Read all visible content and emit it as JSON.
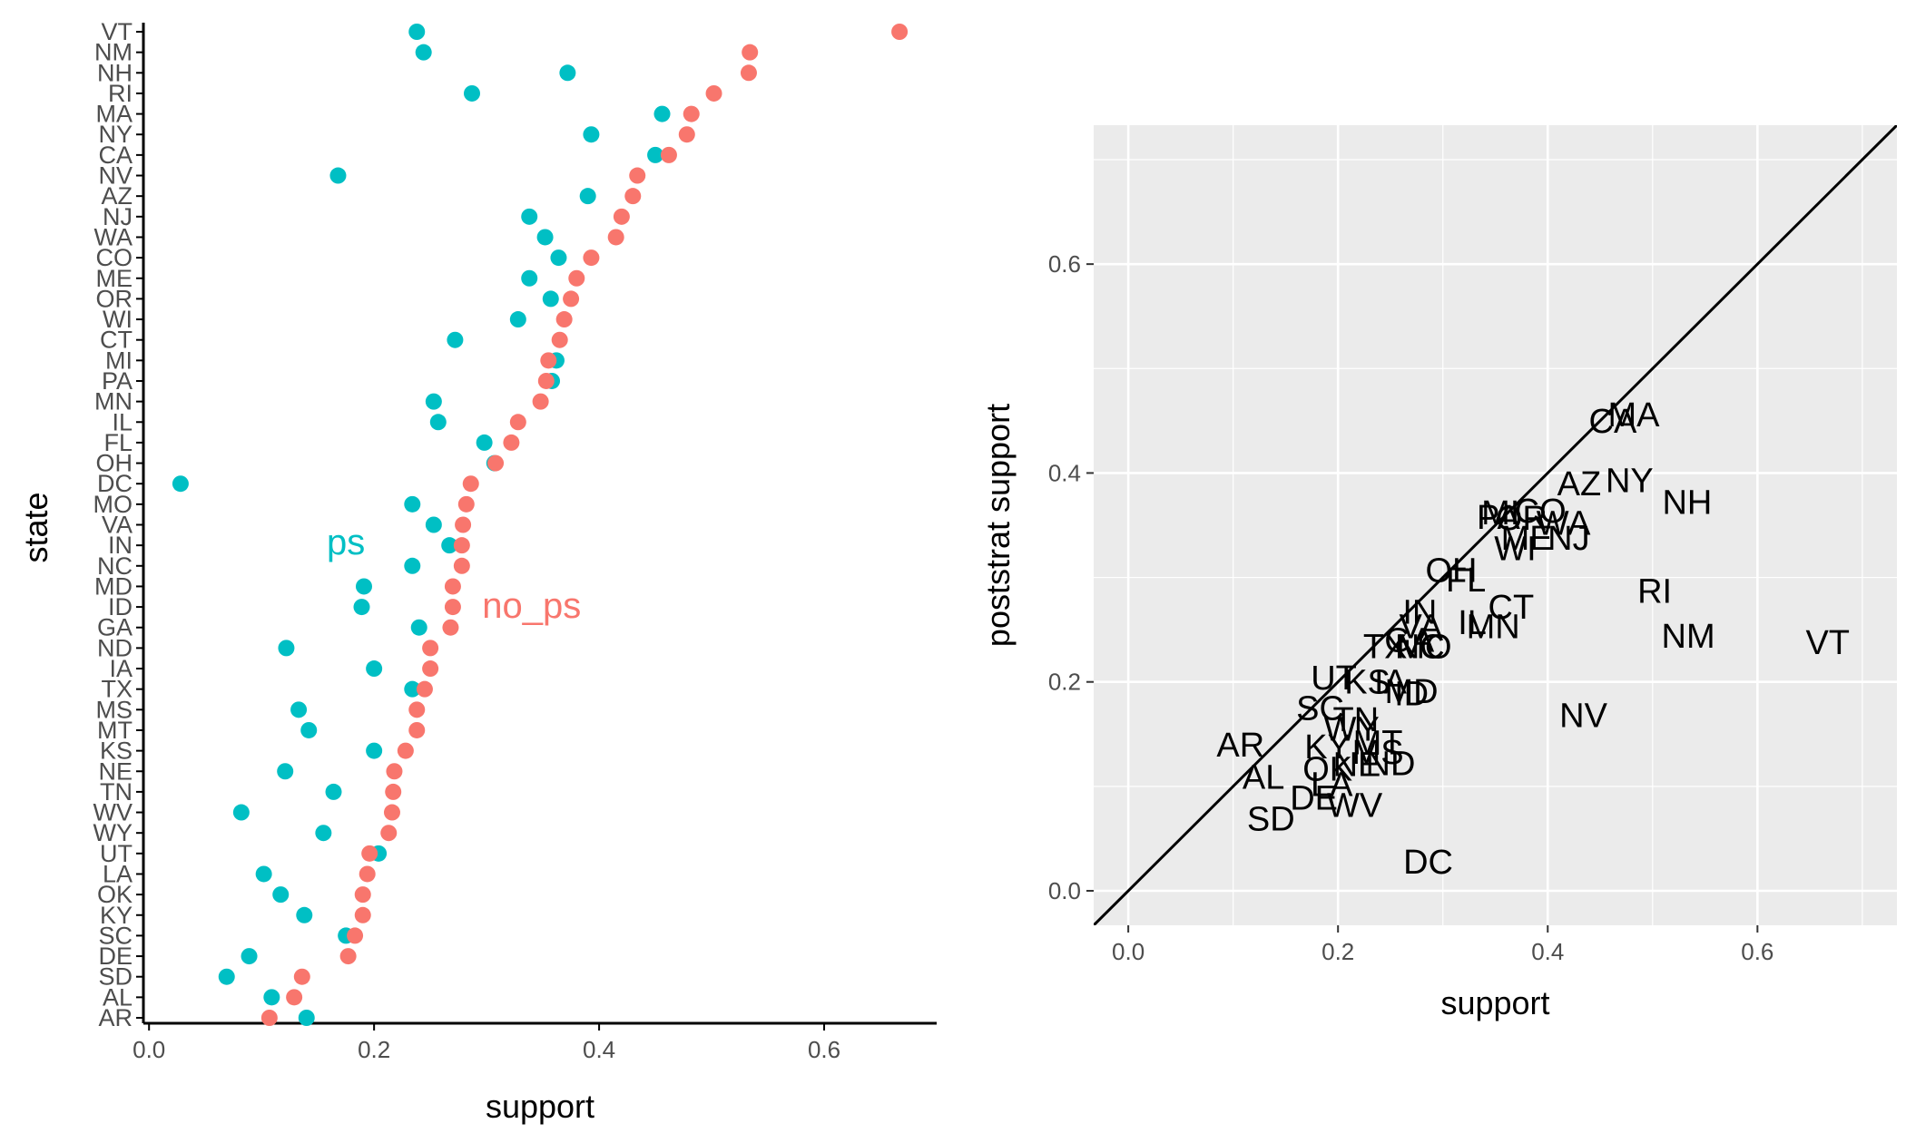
{
  "colors": {
    "ps": "#00BFC4",
    "no_ps": "#F8766D",
    "panel_bg": "#EBEBEB",
    "grid": "#FFFFFF",
    "axis": "#000000",
    "tick_text": "#4D4D4D"
  },
  "chart_data": [
    {
      "type": "scatter",
      "xlabel": "support",
      "ylabel": "state",
      "xlim": [
        -0.005,
        0.7
      ],
      "x_ticks": [
        0.0,
        0.2,
        0.4,
        0.6
      ],
      "x_tick_labels": [
        "0.0",
        "0.2",
        "0.4",
        "0.6"
      ],
      "grid": false,
      "states": [
        "VT",
        "NM",
        "NH",
        "RI",
        "MA",
        "NY",
        "CA",
        "NV",
        "AZ",
        "NJ",
        "WA",
        "CO",
        "ME",
        "OR",
        "WI",
        "CT",
        "MI",
        "PA",
        "MN",
        "IL",
        "FL",
        "OH",
        "DC",
        "MO",
        "VA",
        "IN",
        "NC",
        "MD",
        "ID",
        "GA",
        "ND",
        "IA",
        "TX",
        "MS",
        "MT",
        "KS",
        "NE",
        "TN",
        "WV",
        "WY",
        "UT",
        "LA",
        "OK",
        "KY",
        "SC",
        "DE",
        "SD",
        "AL",
        "AR"
      ],
      "series": [
        {
          "name": "ps",
          "label_position": [
            0.175,
            0.33
          ],
          "values": [
            0.238,
            0.244,
            0.372,
            0.287,
            0.456,
            0.393,
            0.45,
            0.168,
            0.39,
            0.338,
            0.352,
            0.364,
            0.338,
            0.357,
            0.328,
            0.272,
            0.362,
            0.358,
            0.253,
            0.257,
            0.298,
            0.307,
            0.028,
            0.234,
            0.253,
            0.267,
            0.234,
            0.191,
            0.189,
            0.24,
            0.122,
            0.2,
            0.234,
            0.133,
            0.142,
            0.2,
            0.121,
            0.164,
            0.082,
            0.155,
            0.204,
            0.102,
            0.117,
            0.138,
            0.175,
            0.089,
            0.069,
            0.109,
            0.14
          ]
        },
        {
          "name": "no_ps",
          "label_position": [
            0.34,
            0.26
          ],
          "values": [
            0.667,
            0.534,
            0.533,
            0.502,
            0.482,
            0.478,
            0.462,
            0.434,
            0.43,
            0.42,
            0.415,
            0.393,
            0.38,
            0.375,
            0.369,
            0.365,
            0.355,
            0.353,
            0.348,
            0.328,
            0.322,
            0.308,
            0.286,
            0.282,
            0.279,
            0.278,
            0.278,
            0.27,
            0.27,
            0.268,
            0.25,
            0.25,
            0.245,
            0.238,
            0.238,
            0.228,
            0.218,
            0.217,
            0.216,
            0.213,
            0.196,
            0.194,
            0.19,
            0.19,
            0.183,
            0.177,
            0.136,
            0.129,
            0.107
          ]
        }
      ]
    },
    {
      "type": "scatter",
      "xlabel": "support",
      "ylabel": "poststrat support",
      "xlim": [
        -0.033,
        0.733
      ],
      "ylim": [
        -0.033,
        0.733
      ],
      "x_ticks": [
        0.0,
        0.2,
        0.4,
        0.6
      ],
      "x_tick_labels": [
        "0.0",
        "0.2",
        "0.4",
        "0.6"
      ],
      "y_ticks": [
        0.0,
        0.2,
        0.4,
        0.6
      ],
      "y_tick_labels": [
        "0.0",
        "0.2",
        "0.4",
        "0.6"
      ],
      "grid": true,
      "reference_line": "y = x",
      "points": [
        {
          "label": "VT",
          "x": 0.667,
          "y": 0.238
        },
        {
          "label": "NM",
          "x": 0.534,
          "y": 0.244
        },
        {
          "label": "NH",
          "x": 0.533,
          "y": 0.372
        },
        {
          "label": "RI",
          "x": 0.502,
          "y": 0.287
        },
        {
          "label": "MA",
          "x": 0.482,
          "y": 0.456
        },
        {
          "label": "NY",
          "x": 0.478,
          "y": 0.393
        },
        {
          "label": "CA",
          "x": 0.462,
          "y": 0.45
        },
        {
          "label": "NV",
          "x": 0.434,
          "y": 0.168
        },
        {
          "label": "AZ",
          "x": 0.43,
          "y": 0.39
        },
        {
          "label": "NJ",
          "x": 0.42,
          "y": 0.338
        },
        {
          "label": "WA",
          "x": 0.415,
          "y": 0.352
        },
        {
          "label": "CO",
          "x": 0.393,
          "y": 0.364
        },
        {
          "label": "ME",
          "x": 0.38,
          "y": 0.338
        },
        {
          "label": "OR",
          "x": 0.375,
          "y": 0.357
        },
        {
          "label": "WI",
          "x": 0.369,
          "y": 0.328
        },
        {
          "label": "CT",
          "x": 0.365,
          "y": 0.272
        },
        {
          "label": "MI",
          "x": 0.355,
          "y": 0.362
        },
        {
          "label": "PA",
          "x": 0.353,
          "y": 0.358
        },
        {
          "label": "MN",
          "x": 0.348,
          "y": 0.253
        },
        {
          "label": "IL",
          "x": 0.328,
          "y": 0.257
        },
        {
          "label": "FL",
          "x": 0.322,
          "y": 0.298
        },
        {
          "label": "OH",
          "x": 0.308,
          "y": 0.307
        },
        {
          "label": "DC",
          "x": 0.286,
          "y": 0.028
        },
        {
          "label": "MO",
          "x": 0.282,
          "y": 0.234
        },
        {
          "label": "VA",
          "x": 0.279,
          "y": 0.253
        },
        {
          "label": "IN",
          "x": 0.278,
          "y": 0.267
        },
        {
          "label": "NC",
          "x": 0.278,
          "y": 0.234
        },
        {
          "label": "MD",
          "x": 0.27,
          "y": 0.191
        },
        {
          "label": "ID",
          "x": 0.27,
          "y": 0.189
        },
        {
          "label": "GA",
          "x": 0.268,
          "y": 0.24
        },
        {
          "label": "ND",
          "x": 0.25,
          "y": 0.122
        },
        {
          "label": "IA",
          "x": 0.25,
          "y": 0.2
        },
        {
          "label": "TX",
          "x": 0.245,
          "y": 0.234
        },
        {
          "label": "MS",
          "x": 0.238,
          "y": 0.133
        },
        {
          "label": "MT",
          "x": 0.238,
          "y": 0.142
        },
        {
          "label": "KS",
          "x": 0.228,
          "y": 0.2
        },
        {
          "label": "NE",
          "x": 0.218,
          "y": 0.121
        },
        {
          "label": "TN",
          "x": 0.217,
          "y": 0.164
        },
        {
          "label": "WV",
          "x": 0.216,
          "y": 0.082
        },
        {
          "label": "WY",
          "x": 0.213,
          "y": 0.155
        },
        {
          "label": "UT",
          "x": 0.196,
          "y": 0.204
        },
        {
          "label": "LA",
          "x": 0.194,
          "y": 0.102
        },
        {
          "label": "OK",
          "x": 0.19,
          "y": 0.117
        },
        {
          "label": "KY",
          "x": 0.19,
          "y": 0.138
        },
        {
          "label": "SC",
          "x": 0.183,
          "y": 0.175
        },
        {
          "label": "DE",
          "x": 0.177,
          "y": 0.089
        },
        {
          "label": "SD",
          "x": 0.136,
          "y": 0.069
        },
        {
          "label": "AL",
          "x": 0.129,
          "y": 0.109
        },
        {
          "label": "AR",
          "x": 0.107,
          "y": 0.14
        }
      ]
    }
  ]
}
